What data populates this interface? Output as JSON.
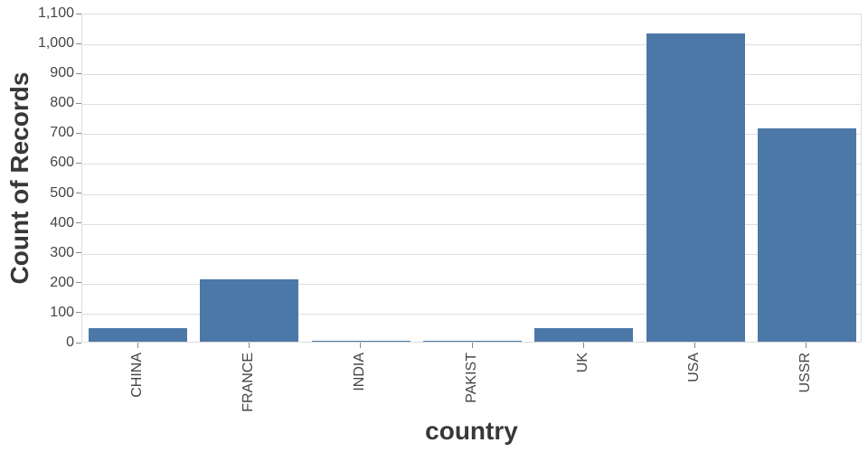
{
  "chart_data": {
    "type": "bar",
    "title": "",
    "categories": [
      "CHINA",
      "FRANCE",
      "INDIA",
      "PAKIST",
      "UK",
      "USA",
      "USSR"
    ],
    "values": [
      45,
      210,
      4,
      2,
      45,
      1032,
      714
    ],
    "xlabel": "country",
    "ylabel": "Count of Records",
    "ylim": [
      0,
      1100
    ],
    "yticks": [
      0,
      100,
      200,
      300,
      400,
      500,
      600,
      700,
      800,
      900,
      1000,
      1100
    ],
    "ytick_labels": [
      "0",
      "100",
      "200",
      "300",
      "400",
      "500",
      "600",
      "700",
      "800",
      "900",
      "1,000",
      "1,100"
    ],
    "grid": true,
    "legend": false,
    "x_label_angle": -90,
    "colors": {
      "bar": "#4c78a8",
      "grid": "#dddddd",
      "plot_border": "#dddddd",
      "tick": "#888888",
      "tick_label": "#454545",
      "axis_title": "#383838",
      "background": "#ffffff"
    }
  }
}
